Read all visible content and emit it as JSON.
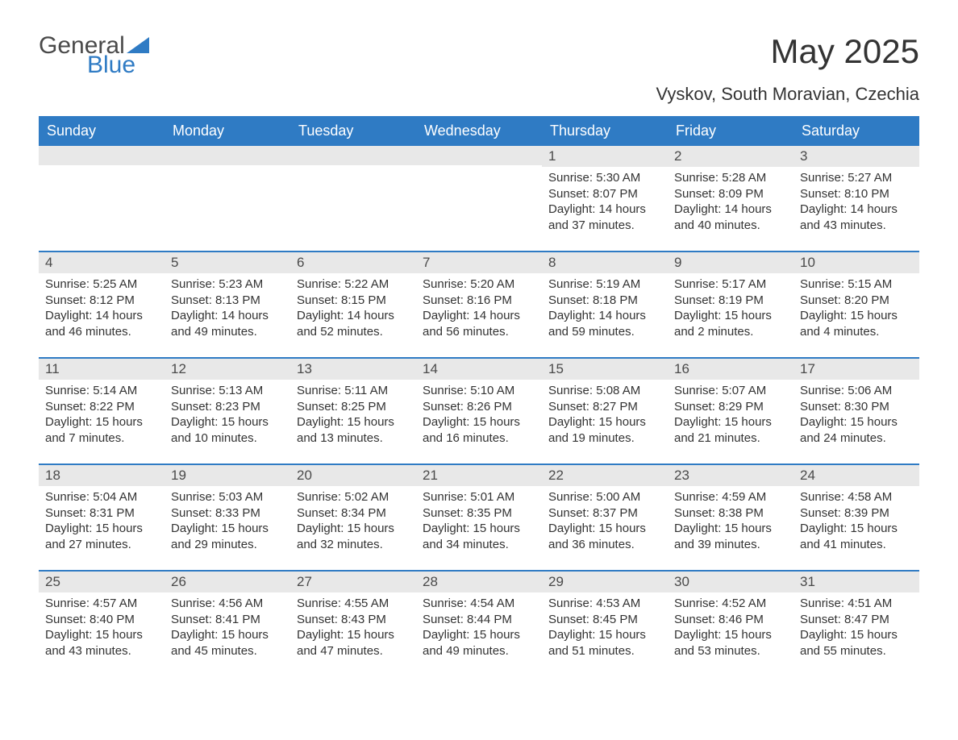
{
  "logo": {
    "word1": "General",
    "word2": "Blue"
  },
  "title": "May 2025",
  "subtitle": "Vyskov, South Moravian, Czechia",
  "colors": {
    "brand_blue": "#2f7bc4",
    "header_text": "#ffffff",
    "daynum_bg": "#e8e8e8",
    "body_text": "#333333",
    "page_bg": "#ffffff"
  },
  "day_headers": [
    "Sunday",
    "Monday",
    "Tuesday",
    "Wednesday",
    "Thursday",
    "Friday",
    "Saturday"
  ],
  "weeks": [
    [
      null,
      null,
      null,
      null,
      {
        "n": "1",
        "sr": "5:30 AM",
        "ss": "8:07 PM",
        "dl": "14 hours and 37 minutes."
      },
      {
        "n": "2",
        "sr": "5:28 AM",
        "ss": "8:09 PM",
        "dl": "14 hours and 40 minutes."
      },
      {
        "n": "3",
        "sr": "5:27 AM",
        "ss": "8:10 PM",
        "dl": "14 hours and 43 minutes."
      }
    ],
    [
      {
        "n": "4",
        "sr": "5:25 AM",
        "ss": "8:12 PM",
        "dl": "14 hours and 46 minutes."
      },
      {
        "n": "5",
        "sr": "5:23 AM",
        "ss": "8:13 PM",
        "dl": "14 hours and 49 minutes."
      },
      {
        "n": "6",
        "sr": "5:22 AM",
        "ss": "8:15 PM",
        "dl": "14 hours and 52 minutes."
      },
      {
        "n": "7",
        "sr": "5:20 AM",
        "ss": "8:16 PM",
        "dl": "14 hours and 56 minutes."
      },
      {
        "n": "8",
        "sr": "5:19 AM",
        "ss": "8:18 PM",
        "dl": "14 hours and 59 minutes."
      },
      {
        "n": "9",
        "sr": "5:17 AM",
        "ss": "8:19 PM",
        "dl": "15 hours and 2 minutes."
      },
      {
        "n": "10",
        "sr": "5:15 AM",
        "ss": "8:20 PM",
        "dl": "15 hours and 4 minutes."
      }
    ],
    [
      {
        "n": "11",
        "sr": "5:14 AM",
        "ss": "8:22 PM",
        "dl": "15 hours and 7 minutes."
      },
      {
        "n": "12",
        "sr": "5:13 AM",
        "ss": "8:23 PM",
        "dl": "15 hours and 10 minutes."
      },
      {
        "n": "13",
        "sr": "5:11 AM",
        "ss": "8:25 PM",
        "dl": "15 hours and 13 minutes."
      },
      {
        "n": "14",
        "sr": "5:10 AM",
        "ss": "8:26 PM",
        "dl": "15 hours and 16 minutes."
      },
      {
        "n": "15",
        "sr": "5:08 AM",
        "ss": "8:27 PM",
        "dl": "15 hours and 19 minutes."
      },
      {
        "n": "16",
        "sr": "5:07 AM",
        "ss": "8:29 PM",
        "dl": "15 hours and 21 minutes."
      },
      {
        "n": "17",
        "sr": "5:06 AM",
        "ss": "8:30 PM",
        "dl": "15 hours and 24 minutes."
      }
    ],
    [
      {
        "n": "18",
        "sr": "5:04 AM",
        "ss": "8:31 PM",
        "dl": "15 hours and 27 minutes."
      },
      {
        "n": "19",
        "sr": "5:03 AM",
        "ss": "8:33 PM",
        "dl": "15 hours and 29 minutes."
      },
      {
        "n": "20",
        "sr": "5:02 AM",
        "ss": "8:34 PM",
        "dl": "15 hours and 32 minutes."
      },
      {
        "n": "21",
        "sr": "5:01 AM",
        "ss": "8:35 PM",
        "dl": "15 hours and 34 minutes."
      },
      {
        "n": "22",
        "sr": "5:00 AM",
        "ss": "8:37 PM",
        "dl": "15 hours and 36 minutes."
      },
      {
        "n": "23",
        "sr": "4:59 AM",
        "ss": "8:38 PM",
        "dl": "15 hours and 39 minutes."
      },
      {
        "n": "24",
        "sr": "4:58 AM",
        "ss": "8:39 PM",
        "dl": "15 hours and 41 minutes."
      }
    ],
    [
      {
        "n": "25",
        "sr": "4:57 AM",
        "ss": "8:40 PM",
        "dl": "15 hours and 43 minutes."
      },
      {
        "n": "26",
        "sr": "4:56 AM",
        "ss": "8:41 PM",
        "dl": "15 hours and 45 minutes."
      },
      {
        "n": "27",
        "sr": "4:55 AM",
        "ss": "8:43 PM",
        "dl": "15 hours and 47 minutes."
      },
      {
        "n": "28",
        "sr": "4:54 AM",
        "ss": "8:44 PM",
        "dl": "15 hours and 49 minutes."
      },
      {
        "n": "29",
        "sr": "4:53 AM",
        "ss": "8:45 PM",
        "dl": "15 hours and 51 minutes."
      },
      {
        "n": "30",
        "sr": "4:52 AM",
        "ss": "8:46 PM",
        "dl": "15 hours and 53 minutes."
      },
      {
        "n": "31",
        "sr": "4:51 AM",
        "ss": "8:47 PM",
        "dl": "15 hours and 55 minutes."
      }
    ]
  ],
  "labels": {
    "sunrise": "Sunrise: ",
    "sunset": "Sunset: ",
    "daylight": "Daylight: "
  }
}
